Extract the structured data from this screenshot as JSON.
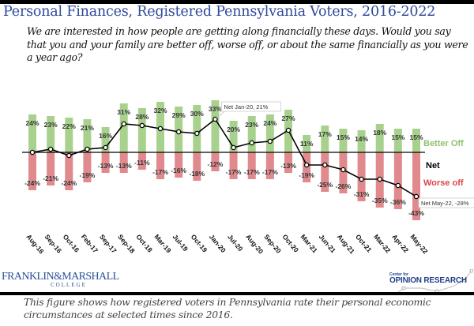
{
  "title": "Personal Finances, Registered Pennsylvania Voters, 2016-2022",
  "question": "We are interested in how people are getting along financially these days. Would you say that you and your family are better off, worse off, or about the same financially as you were a year ago?",
  "caption": "This figure shows how registered voters in Pennsylvania rate their personal economic circumstances at selected times since 2016.",
  "logos": {
    "left_main": "FRANKLIN&MARSHALL",
    "left_sub": "COLLEGE",
    "right_small": "Center for",
    "right_main": "OPINION RESEARCH"
  },
  "colors": {
    "better": "#a9d18e",
    "worse": "#e08a8e",
    "net": "#000000",
    "better_label": "#8fc16e",
    "worse_label": "#d9464c",
    "title": "#2e4a9a"
  },
  "chart_data": {
    "type": "bar",
    "title": "Personal Finances, Registered Pennsylvania Voters, 2016-2022",
    "xlabel": "",
    "ylabel": "",
    "ylim": [
      -45,
      35
    ],
    "grid": false,
    "legend": {
      "placement": "right",
      "entries": [
        "Better Off",
        "Net",
        "Worse off"
      ]
    },
    "categories": [
      "Aug-16",
      "Sep-16",
      "Oct-16",
      "Feb-17",
      "Sep-17",
      "Sep-18",
      "Oct-18",
      "Mar-19",
      "Jul-19",
      "Oct-19",
      "Jan-20",
      "Jul-20",
      "Aug-20",
      "Sep-20",
      "Oct-20",
      "Mar-21",
      "Jun-21",
      "Aug-21",
      "Oct-21",
      "Mar-22",
      "Apr-22",
      "May-22"
    ],
    "series": [
      {
        "name": "Better Off",
        "type": "bar",
        "values": [
          24,
          23,
          22,
          21,
          16,
          31,
          28,
          32,
          29,
          30,
          33,
          20,
          23,
          24,
          27,
          11,
          17,
          15,
          14,
          18,
          15,
          15
        ]
      },
      {
        "name": "Worse off",
        "type": "bar",
        "values": [
          -24,
          -21,
          -24,
          -19,
          -13,
          -13,
          -11,
          -17,
          -16,
          -18,
          -12,
          -17,
          -17,
          -17,
          -13,
          -19,
          -25,
          -26,
          -31,
          -35,
          -36,
          -43
        ]
      },
      {
        "name": "Net",
        "type": "line",
        "values": [
          0,
          2,
          -2,
          2,
          3,
          18,
          17,
          15,
          13,
          12,
          21,
          3,
          6,
          7,
          14,
          -8,
          -8,
          -11,
          -17,
          -17,
          -21,
          -28
        ]
      }
    ],
    "annotations": [
      {
        "category": "Jan-20",
        "text": "Net Jan-20, 21%"
      },
      {
        "category": "May-22",
        "text": "Net May-22, -28%"
      }
    ]
  }
}
